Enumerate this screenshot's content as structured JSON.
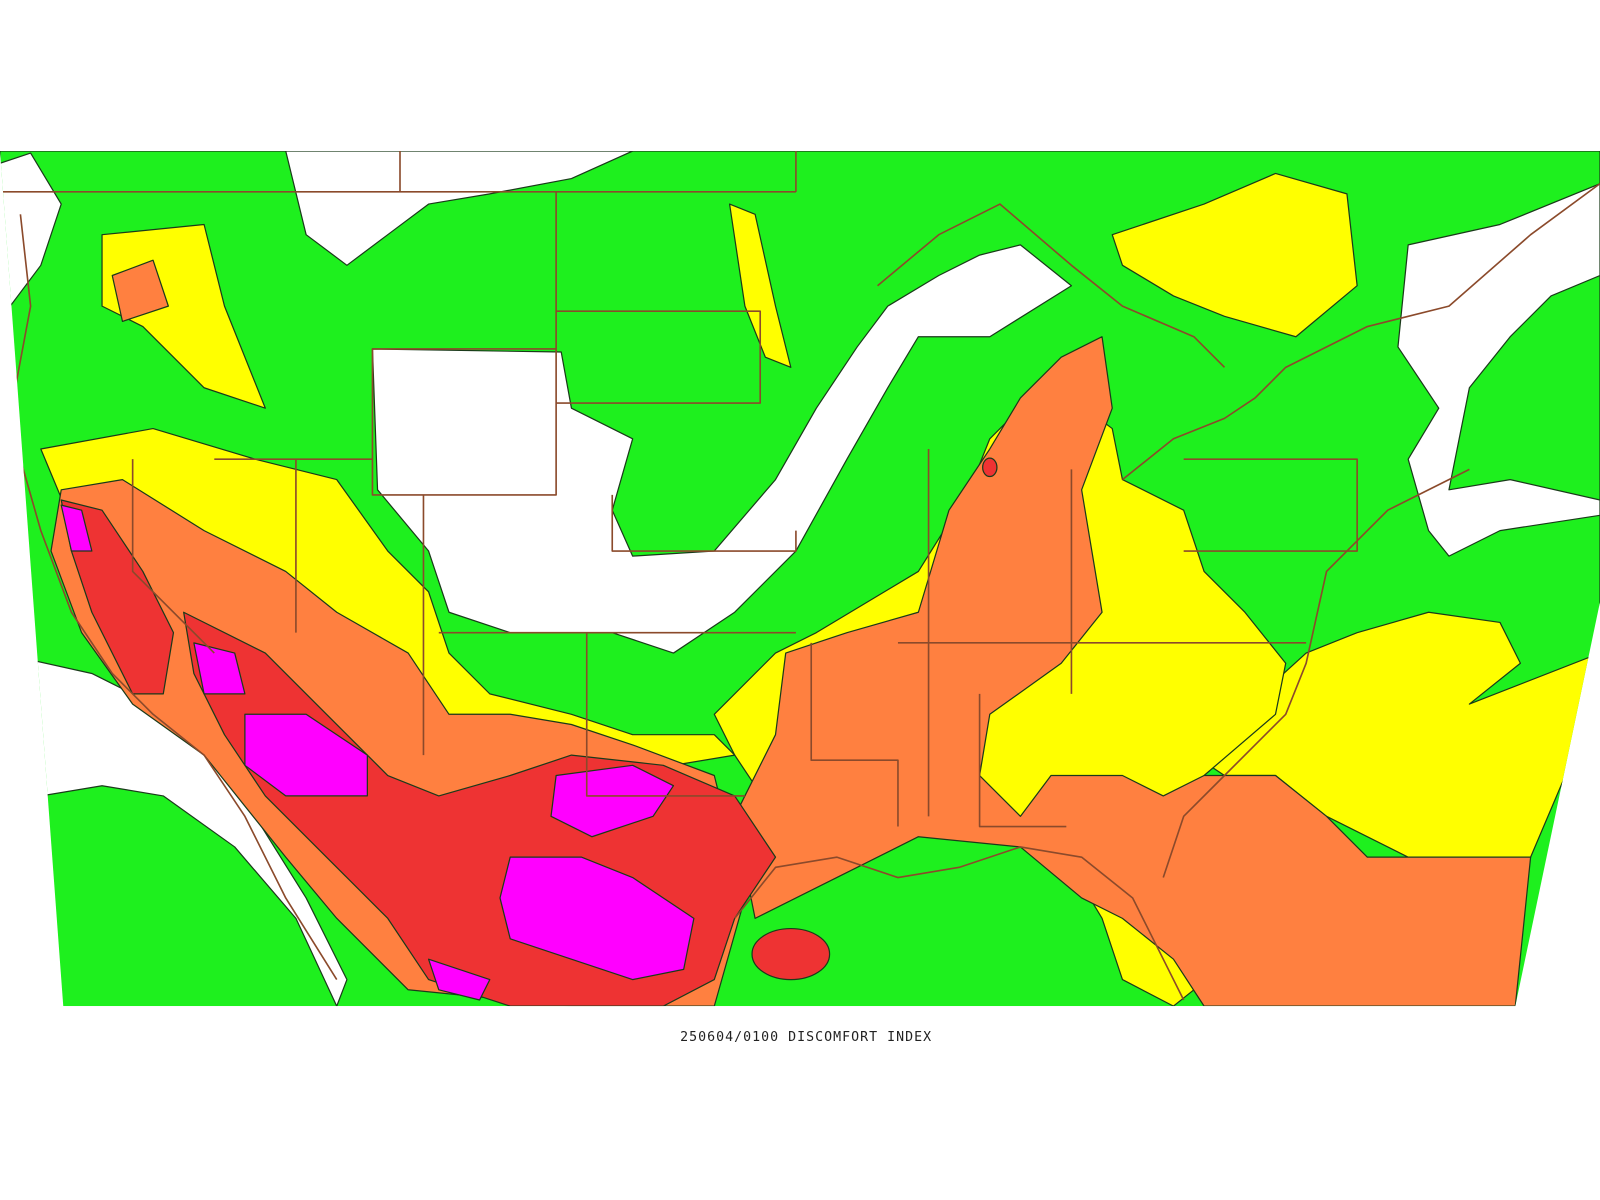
{
  "caption": "250604/0100 DISCOMFORT INDEX"
}
